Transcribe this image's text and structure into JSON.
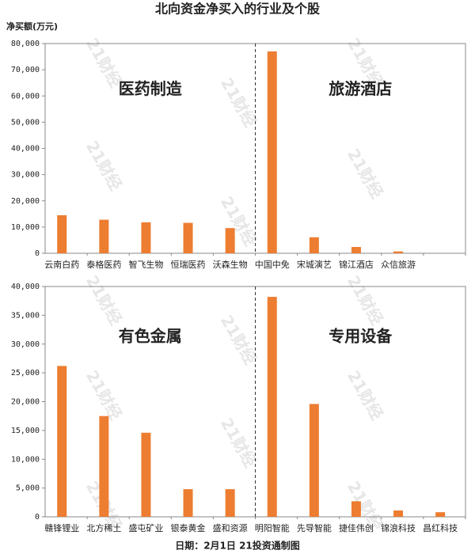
{
  "title": "北向资金净买入的行业及个股",
  "y_label": "净买额(万元)",
  "footer": "日期：2月1日 21投资通制图",
  "watermark": "21财经",
  "chart_data": [
    {
      "type": "bar",
      "color": "#ed7d31",
      "grid": false,
      "categories": [
        "云南白药",
        "泰格医药",
        "智飞生物",
        "恒瑞医药",
        "沃森生物",
        "中国中免",
        "宋城演艺",
        "锦江酒店",
        "众信旅游",
        null
      ],
      "values": [
        14500,
        12800,
        11800,
        11600,
        9600,
        77000,
        6100,
        2400,
        700,
        null
      ],
      "annotations": [
        "医药制造",
        "旅游酒店"
      ],
      "ylim": [
        0,
        80000
      ],
      "yticks": [
        0,
        {
          "value": 10000,
          "label": "10,000"
        },
        {
          "value": 20000,
          "label": "20,000"
        },
        {
          "value": 30000,
          "label": "30,000"
        },
        {
          "value": 40000,
          "label": "40,000"
        },
        {
          "value": 50000,
          "label": "50,000"
        },
        {
          "value": 60000,
          "label": "60,000"
        },
        {
          "value": 70000,
          "label": "70,000"
        },
        {
          "value": 80000,
          "label": "80,000"
        }
      ]
    },
    {
      "type": "bar",
      "color": "#ed7d31",
      "grid": false,
      "categories": [
        "赣锋锂业",
        "北方稀土",
        "盛屯矿业",
        "银泰黄金",
        "盛和资源",
        "明阳智能",
        "先导智能",
        "捷佳伟创",
        "锦浪科技",
        "昌红科技"
      ],
      "values": [
        26200,
        17500,
        14600,
        4800,
        4800,
        38200,
        19600,
        2700,
        1100,
        800
      ],
      "annotations": [
        "有色金属",
        "专用设备"
      ],
      "ylim": [
        0,
        40000
      ],
      "yticks": [
        0,
        {
          "value": 5000,
          "label": "5,000"
        },
        {
          "value": 10000,
          "label": "10,000"
        },
        {
          "value": 15000,
          "label": "15,000"
        },
        {
          "value": 20000,
          "label": "20,000"
        },
        {
          "value": 25000,
          "label": "25,000"
        },
        {
          "value": 30000,
          "label": "30,000"
        },
        {
          "value": 35000,
          "label": "35,000"
        },
        {
          "value": 40000,
          "label": "40,000"
        }
      ]
    }
  ]
}
